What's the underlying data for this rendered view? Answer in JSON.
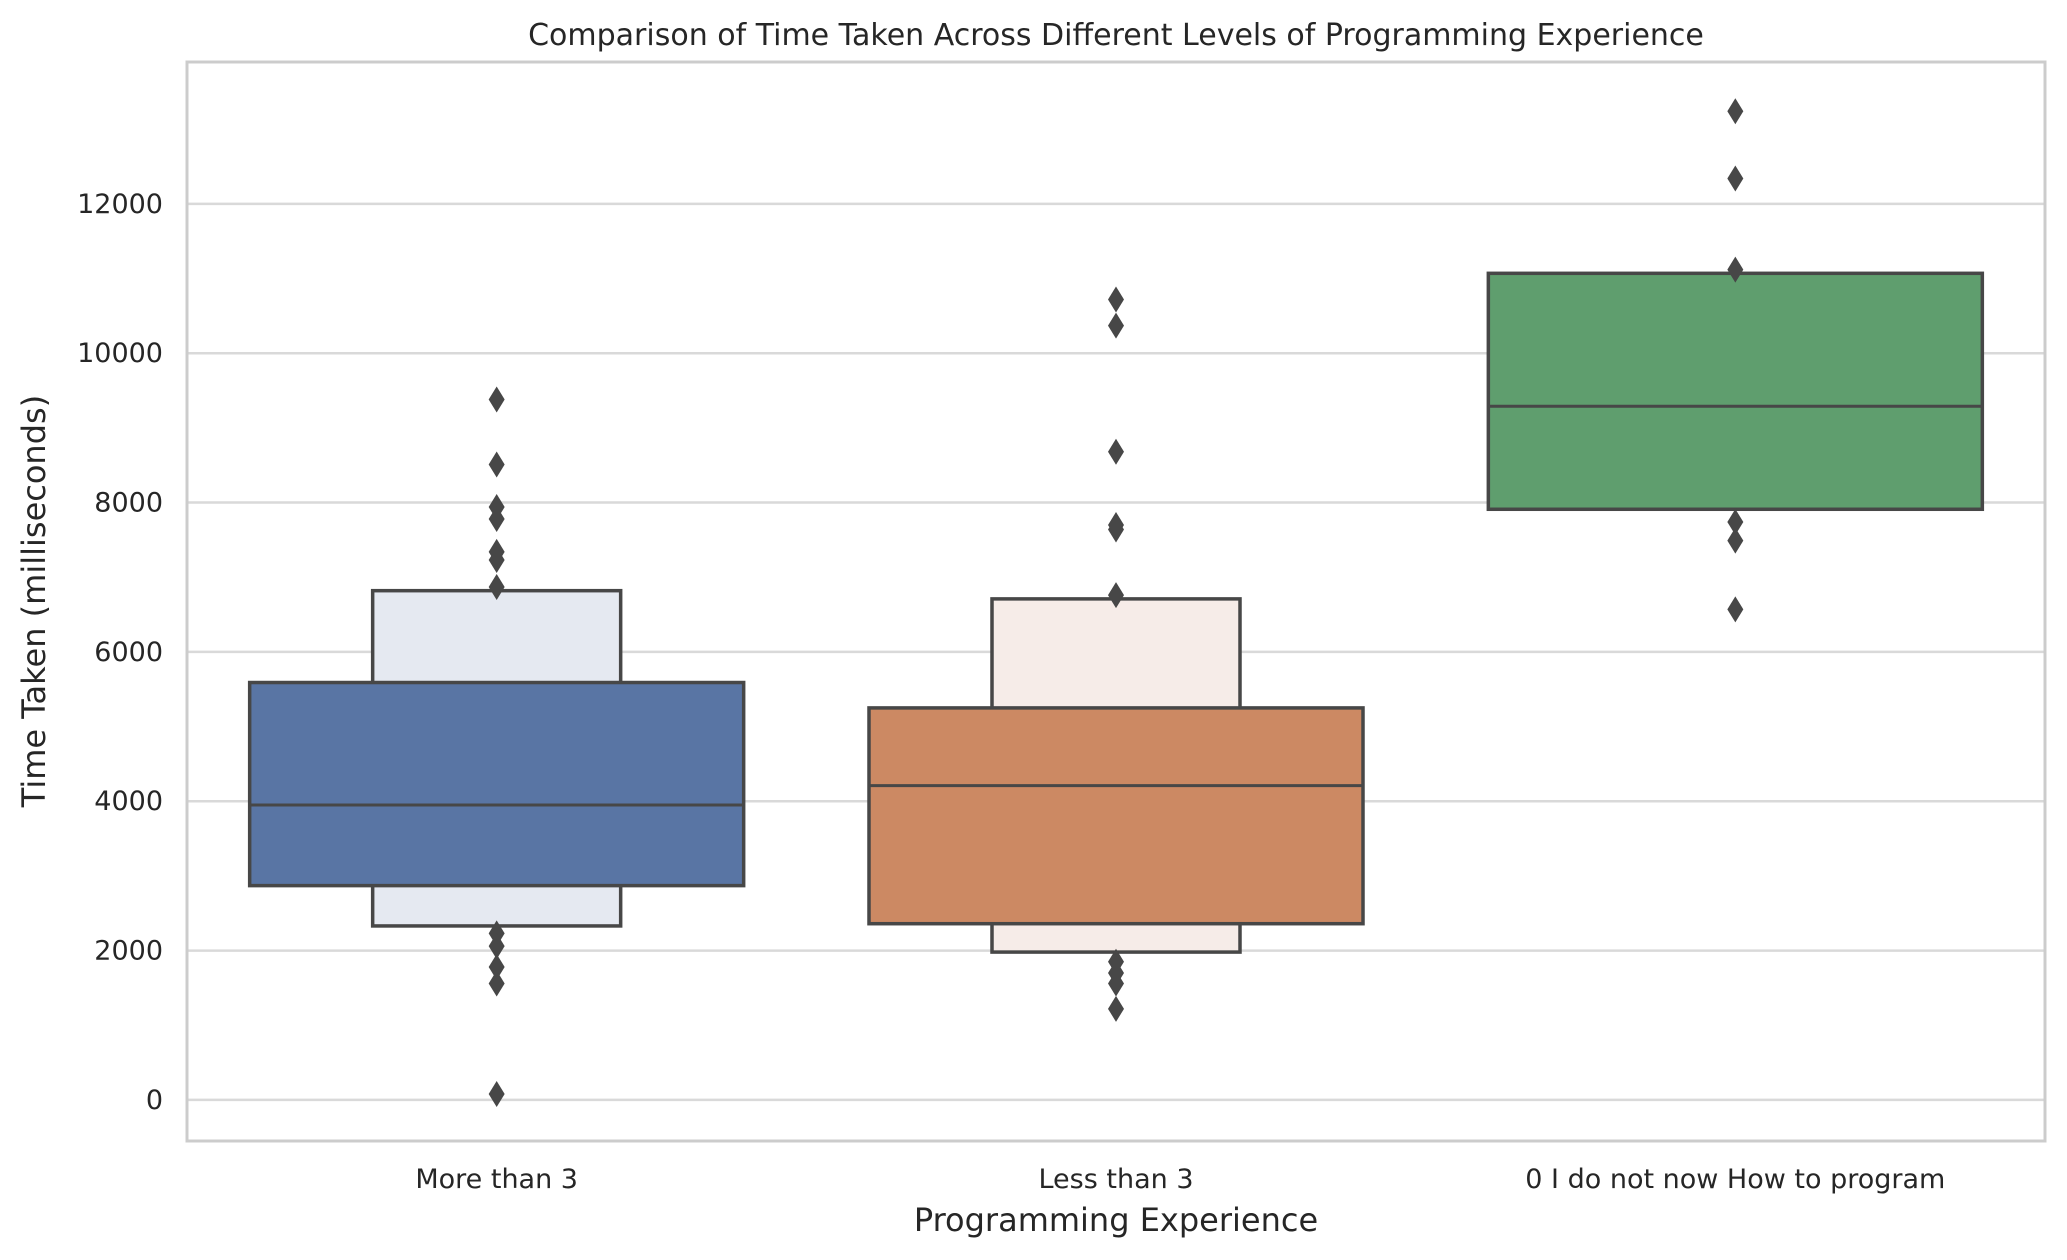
{
  "chart_data": {
    "type": "boxen",
    "title": "Comparison of Time Taken Across Different Levels of Programming Experience",
    "xlabel": "Programming Experience",
    "ylabel": "Time Taken (milliseconds)",
    "ylim": [
      -550,
      13900
    ],
    "yticks": [
      0,
      2000,
      4000,
      6000,
      8000,
      10000,
      12000
    ],
    "grid": true,
    "categories": [
      "More than 3",
      "Less than 3",
      "0 I do not now How to program"
    ],
    "series": [
      {
        "category": "More than 3",
        "color": "#5975a4",
        "outer_color": "#e5e9f1",
        "median": 3950,
        "inner_box": [
          2870,
          5590
        ],
        "outer_box": [
          2330,
          6820
        ],
        "outliers": [
          9380,
          8510,
          7940,
          7780,
          7340,
          7230,
          6870,
          2230,
          2060,
          1780,
          1560,
          80
        ]
      },
      {
        "category": "Less than 3",
        "color": "#cc8963",
        "outer_color": "#f6ece8",
        "median": 4210,
        "inner_box": [
          2360,
          5250
        ],
        "outer_box": [
          1980,
          6710
        ],
        "outliers": [
          10720,
          10370,
          8680,
          7700,
          7640,
          6760,
          1850,
          1700,
          1560,
          1220
        ]
      },
      {
        "category": "0 I do not now How to program",
        "color": "#5f9e6e",
        "median": 9290,
        "inner_box": [
          7910,
          11070
        ],
        "outliers": [
          13240,
          12340,
          11120,
          7740,
          7490,
          6570
        ]
      }
    ]
  }
}
